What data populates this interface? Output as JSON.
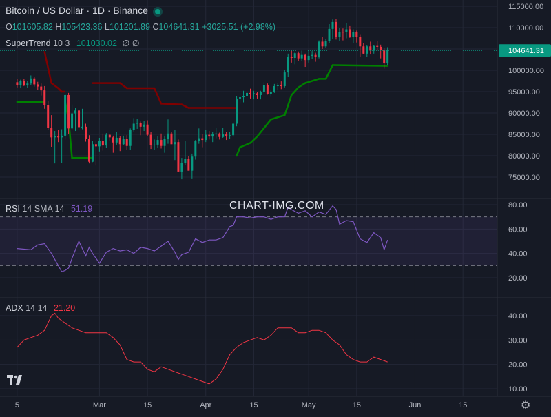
{
  "header": {
    "symbol": "Bitcoin / US Dollar · 1D · Binance",
    "o_label": "O",
    "o_value": "101605.82",
    "h_label": "H",
    "h_value": "105423.36",
    "l_label": "L",
    "l_value": "101201.89",
    "c_label": "C",
    "c_value": "104641.31",
    "change": "+3025.51 (+2.98%)"
  },
  "indicators": {
    "supertrend": {
      "name": "SuperTrend",
      "params": "10 3",
      "value": "101030.02",
      "extra": "∅ ∅"
    },
    "rsi": {
      "name": "RSI",
      "params": "14 SMA 14",
      "value": "51.19"
    },
    "adx": {
      "name": "ADX",
      "params": "14 14",
      "value": "21.20"
    }
  },
  "watermark": "CHART-IMG.COM",
  "price_tag": "104641.31",
  "colors": {
    "background": "#161a25",
    "up": "#089981",
    "down": "#f23645",
    "supertrend_up": "#008000",
    "supertrend_down": "#800000",
    "rsi_line": "#7e57c2",
    "rsi_band": "rgba(126,87,194,0.10)",
    "adx_line": "#f23645",
    "grid": "#232736"
  },
  "icons": {
    "logo": "tradingview-logo-icon",
    "settings": "gear-icon",
    "live": "live-dot-icon"
  },
  "chart_data": [
    {
      "type": "candlestick",
      "title": "Bitcoin / US Dollar · 1D · Binance",
      "y_ticks": [
        "115000.00",
        "110000.00",
        "105000.00",
        "100000.00",
        "95000.00",
        "90000.00",
        "85000.00",
        "80000.00",
        "75000.00"
      ],
      "ylim": [
        72000,
        116000
      ],
      "x_ticks": [
        "5",
        "Mar",
        "15",
        "Apr",
        "15",
        "May",
        "15",
        "Jun",
        "15"
      ],
      "x_tick_days": [
        5,
        29,
        43,
        60,
        74,
        90,
        104,
        121,
        135
      ],
      "x_range": [
        0,
        145
      ],
      "last_price": 104641.31,
      "candles": [
        [
          0,
          97200,
          98000,
          96000,
          96500
        ],
        [
          1,
          96500,
          97800,
          95800,
          97500
        ],
        [
          2,
          97500,
          98000,
          96300,
          96600
        ],
        [
          3,
          96600,
          97500,
          95900,
          96900
        ],
        [
          4,
          96900,
          98800,
          96600,
          98100
        ],
        [
          5,
          98100,
          98500,
          96200,
          96700
        ],
        [
          6,
          96700,
          97300,
          95400,
          96200
        ],
        [
          7,
          96200,
          96900,
          94100,
          95300
        ],
        [
          8,
          95300,
          96300,
          91000,
          91800
        ],
        [
          9,
          91800,
          92800,
          86000,
          86500
        ],
        [
          10,
          86500,
          89500,
          82100,
          84300
        ],
        [
          11,
          84300,
          85800,
          78200,
          84600
        ],
        [
          12,
          84600,
          86000,
          83200,
          84300
        ],
        [
          13,
          84300,
          86200,
          78300,
          84700
        ],
        [
          14,
          84700,
          94500,
          83800,
          94200
        ],
        [
          15,
          94200,
          94700,
          85100,
          86400
        ],
        [
          16,
          86400,
          92000,
          86100,
          89900
        ],
        [
          17,
          89900,
          91200,
          85800,
          90600
        ],
        [
          18,
          90600,
          90900,
          85800,
          86700
        ],
        [
          19,
          86700,
          91000,
          86200,
          86800
        ],
        [
          20,
          86800,
          87500,
          83300,
          84000
        ],
        [
          21,
          84000,
          84800,
          78200,
          78600
        ],
        [
          22,
          78600,
          83500,
          78500,
          82700
        ],
        [
          23,
          82700,
          83600,
          77700,
          82200
        ],
        [
          24,
          82200,
          84200,
          81000,
          83400
        ],
        [
          25,
          83400,
          85200,
          81200,
          82400
        ],
        [
          26,
          82400,
          85300,
          81900,
          84900
        ],
        [
          27,
          84900,
          85000,
          83600,
          84300
        ],
        [
          28,
          84300,
          84700,
          80700,
          83100
        ],
        [
          29,
          83100,
          85600,
          82600,
          84200
        ],
        [
          30,
          84200,
          84600,
          81100,
          82700
        ],
        [
          31,
          82700,
          84700,
          82500,
          84000
        ],
        [
          32,
          84000,
          84800,
          81400,
          82300
        ],
        [
          33,
          82300,
          86400,
          81300,
          86100
        ],
        [
          34,
          86100,
          88800,
          85700,
          87500
        ],
        [
          35,
          87500,
          88600,
          86300,
          87700
        ],
        [
          36,
          87700,
          88000,
          84800,
          86800
        ],
        [
          37,
          86800,
          88200,
          85800,
          87300
        ],
        [
          38,
          87300,
          88300,
          84600,
          84900
        ],
        [
          39,
          84900,
          85600,
          81600,
          82500
        ],
        [
          40,
          82500,
          83800,
          81300,
          82600
        ],
        [
          41,
          82600,
          84600,
          81800,
          83700
        ],
        [
          42,
          83700,
          85200,
          81700,
          82300
        ],
        [
          43,
          82300,
          84700,
          80700,
          84000
        ],
        [
          44,
          84000,
          88500,
          82800,
          85200
        ],
        [
          45,
          85200,
          85500,
          82700,
          82700
        ],
        [
          46,
          82700,
          86000,
          79000,
          83200
        ],
        [
          47,
          83200,
          83800,
          76600,
          76300
        ],
        [
          48,
          76300,
          79500,
          74500,
          78300
        ],
        [
          49,
          78300,
          83500,
          77800,
          79200
        ],
        [
          50,
          79200,
          80000,
          76900,
          76500
        ],
        [
          51,
          76500,
          80500,
          74700,
          79800
        ],
        [
          52,
          79800,
          83700,
          79100,
          83500
        ],
        [
          53,
          83500,
          86400,
          82800,
          84100
        ],
        [
          54,
          84100,
          85100,
          82000,
          83700
        ],
        [
          55,
          83700,
          86000,
          83200,
          84900
        ],
        [
          56,
          84900,
          85800,
          83800,
          84500
        ],
        [
          57,
          84500,
          85500,
          83200,
          85000
        ],
        [
          58,
          85000,
          86600,
          84100,
          85200
        ],
        [
          59,
          85200,
          85400,
          83800,
          84400
        ],
        [
          60,
          84400,
          86600,
          84200,
          85000
        ],
        [
          61,
          85000,
          85500,
          83700,
          84600
        ],
        [
          62,
          84600,
          85500,
          84000,
          84800
        ],
        [
          63,
          84800,
          87800,
          84400,
          87500
        ],
        [
          64,
          87500,
          93900,
          86900,
          93400
        ],
        [
          65,
          93400,
          94700,
          92200,
          93700
        ],
        [
          66,
          93700,
          95200,
          92500,
          93900
        ],
        [
          67,
          93900,
          94500,
          92200,
          94700
        ],
        [
          68,
          94700,
          95700,
          93400,
          94400
        ],
        [
          69,
          94400,
          95200,
          93200,
          94600
        ],
        [
          70,
          94600,
          95000,
          93400,
          94200
        ],
        [
          71,
          94200,
          95200,
          93200,
          94900
        ],
        [
          72,
          94900,
          97200,
          94600,
          96500
        ],
        [
          73,
          96500,
          96900,
          94300,
          94400
        ],
        [
          74,
          94400,
          95500,
          93800,
          95000
        ],
        [
          75,
          95000,
          96800,
          94700,
          96300
        ],
        [
          76,
          96300,
          97000,
          95300,
          96500
        ],
        [
          77,
          96500,
          97400,
          95600,
          96300
        ],
        [
          78,
          96300,
          100000,
          96000,
          99500
        ],
        [
          79,
          99500,
          103900,
          98500,
          103200
        ],
        [
          80,
          103200,
          104800,
          101800,
          102900
        ],
        [
          81,
          102900,
          104200,
          101400,
          104000
        ],
        [
          82,
          104000,
          104400,
          102100,
          102800
        ],
        [
          83,
          102800,
          104600,
          102100,
          103600
        ],
        [
          84,
          103600,
          103900,
          100800,
          102400
        ],
        [
          85,
          102400,
          104700,
          101800,
          103400
        ],
        [
          86,
          103400,
          104500,
          102700,
          103600
        ],
        [
          87,
          103600,
          104100,
          102000,
          103200
        ],
        [
          88,
          103200,
          107000,
          102800,
          106700
        ],
        [
          89,
          106700,
          107800,
          105000,
          105600
        ],
        [
          90,
          105600,
          107300,
          105200,
          106800
        ],
        [
          91,
          106800,
          110800,
          106400,
          109700
        ],
        [
          92,
          109700,
          111900,
          107300,
          111300
        ],
        [
          93,
          111300,
          112000,
          107200,
          107900
        ],
        [
          94,
          107900,
          110000,
          106800,
          109000
        ],
        [
          95,
          109000,
          109800,
          107000,
          108900
        ],
        [
          96,
          108900,
          111000,
          107500,
          109600
        ],
        [
          97,
          109600,
          110500,
          107600,
          107900
        ],
        [
          98,
          107900,
          109600,
          106400,
          108900
        ],
        [
          99,
          108900,
          109300,
          106500,
          107800
        ],
        [
          100,
          107800,
          108300,
          103200,
          105600
        ],
        [
          101,
          105600,
          106300,
          103800,
          103900
        ],
        [
          102,
          103900,
          105900,
          103100,
          105600
        ],
        [
          103,
          105600,
          106700,
          103700,
          104600
        ],
        [
          104,
          104600,
          105900,
          103900,
          105700
        ],
        [
          105,
          105700,
          106800,
          104600,
          105500
        ],
        [
          106,
          105500,
          106000,
          102800,
          104700
        ],
        [
          107,
          104700,
          105200,
          100400,
          101600
        ],
        [
          108,
          101600,
          105400,
          101200,
          104641
        ]
      ],
      "supertrend": [
        [
          0,
          92600,
          "up"
        ],
        [
          7,
          92600,
          "up"
        ],
        [
          8,
          104300,
          "down"
        ],
        [
          10,
          97000,
          "down"
        ],
        [
          12,
          95800,
          "down"
        ],
        [
          13,
          95000,
          "down"
        ],
        [
          14,
          92600,
          "up"
        ],
        [
          15,
          88500,
          "up"
        ],
        [
          16,
          79500,
          "up"
        ],
        [
          21,
          79500,
          "up"
        ],
        [
          22,
          97000,
          "down"
        ],
        [
          30,
          97000,
          "down"
        ],
        [
          32,
          95800,
          "down"
        ],
        [
          40,
          95800,
          "down"
        ],
        [
          42,
          92200,
          "down"
        ],
        [
          48,
          92000,
          "down"
        ],
        [
          50,
          91200,
          "down"
        ],
        [
          63,
          91200,
          "down"
        ],
        [
          64,
          80000,
          "up"
        ],
        [
          65,
          82000,
          "up"
        ],
        [
          68,
          83000,
          "up"
        ],
        [
          70,
          84500,
          "up"
        ],
        [
          72,
          86500,
          "up"
        ],
        [
          74,
          88500,
          "up"
        ],
        [
          78,
          89500,
          "up"
        ],
        [
          80,
          94200,
          "up"
        ],
        [
          82,
          96000,
          "up"
        ],
        [
          84,
          97000,
          "up"
        ],
        [
          88,
          98000,
          "up"
        ],
        [
          90,
          98000,
          "up"
        ],
        [
          92,
          101200,
          "up"
        ],
        [
          108,
          101030,
          "up"
        ]
      ]
    },
    {
      "type": "line",
      "name": "RSI",
      "y_ticks": [
        "80.00",
        "60.00",
        "40.00",
        "20.00"
      ],
      "ylim": [
        18,
        82
      ],
      "bands": [
        30,
        70
      ],
      "x": [
        0,
        4,
        6,
        8,
        10,
        12,
        13,
        14,
        15,
        16,
        18,
        20,
        21,
        22,
        24,
        26,
        28,
        30,
        32,
        34,
        36,
        38,
        40,
        42,
        44,
        46,
        47,
        48,
        50,
        52,
        54,
        56,
        58,
        60,
        62,
        63,
        64,
        66,
        68,
        70,
        72,
        74,
        76,
        78,
        79,
        80,
        82,
        84,
        86,
        88,
        90,
        92,
        93,
        94,
        96,
        98,
        100,
        102,
        104,
        106,
        107,
        108
      ],
      "values": [
        44,
        43,
        47,
        48,
        40,
        30,
        25,
        26,
        28,
        36,
        50,
        38,
        45,
        40,
        32,
        41,
        44,
        42,
        43,
        40,
        45,
        44,
        42,
        46,
        50,
        41,
        35,
        39,
        41,
        52,
        49,
        51,
        51,
        53,
        62,
        63,
        70,
        70,
        69,
        70,
        70,
        68,
        70,
        70,
        78,
        76,
        73,
        75,
        70,
        74,
        72,
        79,
        76,
        64,
        67,
        66,
        52,
        49,
        57,
        53,
        43,
        51
      ]
    },
    {
      "type": "line",
      "name": "ADX",
      "y_ticks": [
        "40.00",
        "30.00",
        "20.00",
        "10.00"
      ],
      "ylim": [
        9,
        43
      ],
      "x": [
        0,
        2,
        4,
        6,
        8,
        10,
        11,
        12,
        14,
        16,
        18,
        20,
        22,
        24,
        26,
        28,
        30,
        32,
        34,
        36,
        38,
        40,
        42,
        44,
        46,
        48,
        50,
        52,
        54,
        56,
        58,
        60,
        62,
        64,
        66,
        68,
        70,
        72,
        74,
        76,
        78,
        80,
        82,
        84,
        86,
        88,
        90,
        92,
        94,
        96,
        98,
        100,
        102,
        104,
        106,
        108
      ],
      "values": [
        27,
        30,
        31,
        32,
        34,
        40,
        41,
        39,
        37,
        35,
        34,
        33,
        33,
        33,
        33,
        31,
        28,
        22,
        21,
        21,
        18,
        17,
        19,
        18,
        17,
        16,
        15,
        14,
        13,
        12,
        14,
        18,
        24,
        27,
        29,
        30,
        31,
        30,
        32,
        35,
        35,
        35,
        33,
        33,
        34,
        34,
        33,
        30,
        28,
        24,
        22,
        21,
        21,
        23,
        22,
        21
      ]
    }
  ]
}
